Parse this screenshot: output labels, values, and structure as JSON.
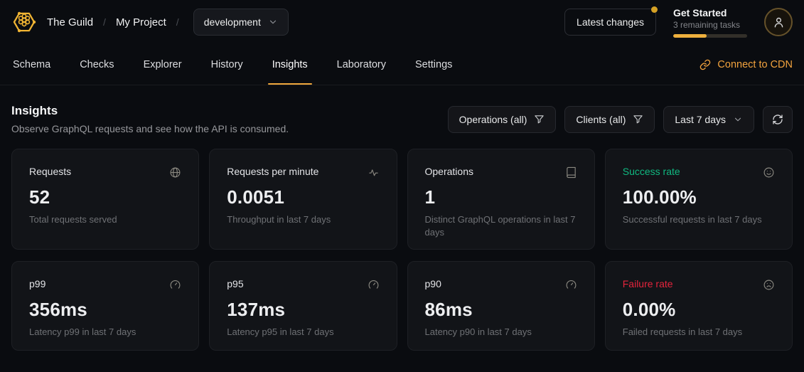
{
  "colors": {
    "brand": "#f2a33e",
    "accent_yellow": "#eeb03d",
    "success": "#10b981",
    "failure": "#e5243c",
    "card_bg": "#121418",
    "page_bg": "#0a0c10"
  },
  "header": {
    "org": "The Guild",
    "separator": "/",
    "project": "My Project",
    "target_selector": {
      "value": "development"
    },
    "latest_changes_label": "Latest changes",
    "get_started": {
      "title": "Get Started",
      "subtitle": "3 remaining tasks",
      "progress_percent": 45
    }
  },
  "nav": {
    "tabs": [
      {
        "label": "Schema"
      },
      {
        "label": "Checks"
      },
      {
        "label": "Explorer"
      },
      {
        "label": "History"
      },
      {
        "label": "Insights"
      },
      {
        "label": "Laboratory"
      },
      {
        "label": "Settings"
      }
    ],
    "active_tab": "Insights",
    "cdn_link_label": "Connect to CDN"
  },
  "page": {
    "title": "Insights",
    "subtitle": "Observe GraphQL requests and see how the API is consumed."
  },
  "filters": {
    "operations_label": "Operations (all)",
    "clients_label": "Clients (all)",
    "period_label": "Last 7 days",
    "refresh_icon": "refresh-icon",
    "filter_icon": "funnel-icon"
  },
  "cards": [
    {
      "title": "Requests",
      "value": "52",
      "subtitle": "Total requests served",
      "icon": "globe"
    },
    {
      "title": "Requests per minute",
      "value": "0.0051",
      "subtitle": "Throughput in last 7 days",
      "icon": "activity"
    },
    {
      "title": "Operations",
      "value": "1",
      "subtitle": "Distinct GraphQL operations in last 7 days",
      "icon": "book"
    },
    {
      "title": "Success rate",
      "value": "100.00%",
      "subtitle": "Successful requests in last 7 days",
      "icon": "smile",
      "accent": "success"
    },
    {
      "title": "p99",
      "value": "356ms",
      "subtitle": "Latency p99 in last 7 days",
      "icon": "gauge"
    },
    {
      "title": "p95",
      "value": "137ms",
      "subtitle": "Latency p95 in last 7 days",
      "icon": "gauge"
    },
    {
      "title": "p90",
      "value": "86ms",
      "subtitle": "Latency p90 in last 7 days",
      "icon": "gauge"
    },
    {
      "title": "Failure rate",
      "value": "0.00%",
      "subtitle": "Failed requests in last 7 days",
      "icon": "frown",
      "accent": "failure"
    }
  ]
}
